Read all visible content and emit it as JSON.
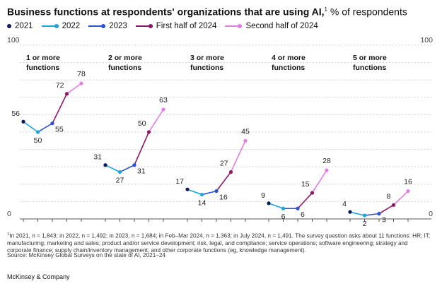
{
  "title": {
    "bold": "Business functions at respondents' organizations that are using AI,",
    "sup": "1",
    "rest": " % of respondents"
  },
  "legend": [
    {
      "label": "2021",
      "color": "#0e1a5c",
      "kind": "dot"
    },
    {
      "label": "2022",
      "color": "#1ba5e0",
      "kind": "line"
    },
    {
      "label": "2023",
      "color": "#2a52d4",
      "kind": "line"
    },
    {
      "label": "First half of 2024",
      "color": "#8c1866",
      "kind": "line"
    },
    {
      "label": "Second half of 2024",
      "color": "#e57be6",
      "kind": "line"
    }
  ],
  "chart_data": {
    "type": "line",
    "ylim": [
      0,
      100
    ],
    "y_ticks": [
      "0",
      "100"
    ],
    "grid": true,
    "series_names": [
      "2021",
      "2022",
      "2023",
      "First half of 2024",
      "Second half of 2024"
    ],
    "panels": [
      {
        "label_line1": "1 or more",
        "label_line2": "functions",
        "values": [
          56,
          50,
          55,
          72,
          78
        ]
      },
      {
        "label_line1": "2 or more",
        "label_line2": "functions",
        "values": [
          31,
          27,
          31,
          50,
          63
        ]
      },
      {
        "label_line1": "3 or more",
        "label_line2": "functions",
        "values": [
          17,
          14,
          16,
          27,
          45
        ]
      },
      {
        "label_line1": "4 or more",
        "label_line2": "functions",
        "values": [
          9,
          6,
          6,
          15,
          28
        ]
      },
      {
        "label_line1": "5 or more",
        "label_line2": "functions",
        "values": [
          4,
          2,
          3,
          8,
          16
        ]
      }
    ]
  },
  "footnote": {
    "sup": "1",
    "text": "In 2021, n = 1,843; in 2022, n = 1,492; in 2023, n = 1,684; in Feb–Mar 2024, n = 1,363; in July 2024, n = 1,491. The survey question asks about 11 functions: HR; IT; manufacturing; marketing and sales; product and/or service development; risk, legal, and compliance; service operations; software engineering; strategy and corporate finance; supply chain/inventory management; and other corporate functions (eg, knowledge management)."
  },
  "source": "Source: McKinsey Global Surveys on the state of AI, 2021–24",
  "brand": "McKinsey & Company"
}
